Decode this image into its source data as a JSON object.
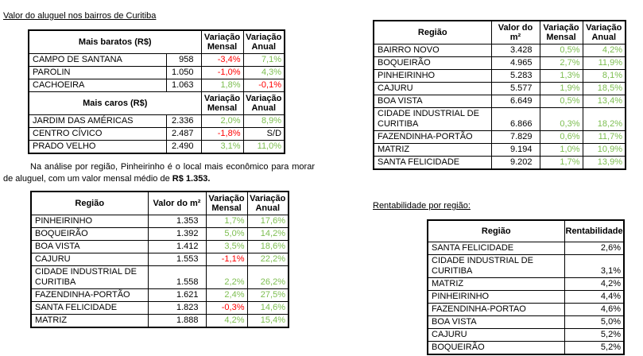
{
  "titles": {
    "left": "Valor do aluguel nos bairros de Curitiba",
    "right": "Rentabilidade por região:"
  },
  "paragraph": {
    "text": "Na análise por região, Pinheirinho é o local mais econômico para morar de aluguel, com um valor mensal médio de ",
    "bold": "R$ 1.353."
  },
  "colors": {
    "positive": "#7DBE50",
    "negative": "#FF0000",
    "neutral": "#000000",
    "border": "#000000",
    "background": "#FFFFFF"
  },
  "variation_headers": {
    "mensal": "Variação Mensal",
    "anual": "Variação Anual"
  },
  "cheap_expensive_table": {
    "sections": [
      {
        "label": "Mais baratos (R$)",
        "rows": [
          {
            "name": "CAMPO DE SANTANA",
            "value": "958",
            "mensal": "-3,4%",
            "mensal_tone": "neg",
            "anual": "7,1%",
            "anual_tone": "pos"
          },
          {
            "name": "PAROLIN",
            "value": "1.050",
            "mensal": "-1,0%",
            "mensal_tone": "neg",
            "anual": "4,3%",
            "anual_tone": "pos"
          },
          {
            "name": "CACHOEIRA",
            "value": "1.063",
            "mensal": "1,8%",
            "mensal_tone": "pos",
            "anual": "-0,1%",
            "anual_tone": "neg"
          }
        ]
      },
      {
        "label": "Mais caros (R$)",
        "rows": [
          {
            "name": "JARDIM DAS AMÉRICAS",
            "value": "2.336",
            "mensal": "2,0%",
            "mensal_tone": "pos",
            "anual": "8,9%",
            "anual_tone": "pos"
          },
          {
            "name": "CENTRO CÍVICO",
            "value": "2.487",
            "mensal": "-1,8%",
            "mensal_tone": "neg",
            "anual": "S/D",
            "anual_tone": "neu"
          },
          {
            "name": "PRADO VELHO",
            "value": "2.490",
            "mensal": "3,1%",
            "mensal_tone": "pos",
            "anual": "11,0%",
            "anual_tone": "pos"
          }
        ]
      }
    ]
  },
  "region_table_right": {
    "headers": {
      "region": "Região",
      "valor": "Valor do m²",
      "mensal": "Variação Mensal",
      "anual": "Variação Anual"
    },
    "rows": [
      {
        "region": "BAIRRO NOVO",
        "valor": "3.428",
        "mensal": "0,5%",
        "mensal_tone": "pos",
        "anual": "4,2%",
        "anual_tone": "pos"
      },
      {
        "region": "BOQUEIRÃO",
        "valor": "4.965",
        "mensal": "2,7%",
        "mensal_tone": "pos",
        "anual": "11,9%",
        "anual_tone": "pos"
      },
      {
        "region": "PINHEIRINHO",
        "valor": "5.283",
        "mensal": "1,3%",
        "mensal_tone": "pos",
        "anual": "8,1%",
        "anual_tone": "pos"
      },
      {
        "region": "CAJURU",
        "valor": "5.577",
        "mensal": "1,9%",
        "mensal_tone": "pos",
        "anual": "18,5%",
        "anual_tone": "pos"
      },
      {
        "region": "BOA VISTA",
        "valor": "6.649",
        "mensal": "0,5%",
        "mensal_tone": "pos",
        "anual": "13,4%",
        "anual_tone": "pos"
      },
      {
        "region": "CIDADE INDUSTRIAL DE CURITIBA",
        "valor": "6.866",
        "mensal": "0,3%",
        "mensal_tone": "pos",
        "anual": "18,2%",
        "anual_tone": "pos"
      },
      {
        "region": "FAZENDINHA-PORTÃO",
        "valor": "7.829",
        "mensal": "0,6%",
        "mensal_tone": "pos",
        "anual": "11,7%",
        "anual_tone": "pos"
      },
      {
        "region": "MATRIZ",
        "valor": "9.194",
        "mensal": "1,0%",
        "mensal_tone": "pos",
        "anual": "10,9%",
        "anual_tone": "pos"
      },
      {
        "region": "SANTA FELICIDADE",
        "valor": "9.202",
        "mensal": "1,7%",
        "mensal_tone": "pos",
        "anual": "13,9%",
        "anual_tone": "pos"
      }
    ]
  },
  "region_table_left": {
    "headers": {
      "region": "Região",
      "valor": "Valor do m²",
      "mensal": "Variação Mensal",
      "anual": "Variação Anual"
    },
    "rows": [
      {
        "region": "PINHEIRINHO",
        "valor": "1.353",
        "mensal": "1,7%",
        "mensal_tone": "pos",
        "anual": "17,6%",
        "anual_tone": "pos"
      },
      {
        "region": "BOQUEIRÃO",
        "valor": "1.392",
        "mensal": "5,0%",
        "mensal_tone": "pos",
        "anual": "14,2%",
        "anual_tone": "pos"
      },
      {
        "region": "BOA VISTA",
        "valor": "1.412",
        "mensal": "3,5%",
        "mensal_tone": "pos",
        "anual": "18,6%",
        "anual_tone": "pos"
      },
      {
        "region": "CAJURU",
        "valor": "1.553",
        "mensal": "-1,1%",
        "mensal_tone": "neg",
        "anual": "22,2%",
        "anual_tone": "pos"
      },
      {
        "region": "CIDADE INDUSTRIAL DE CURITIBA",
        "valor": "1.558",
        "mensal": "2,2%",
        "mensal_tone": "pos",
        "anual": "26,2%",
        "anual_tone": "pos"
      },
      {
        "region": "FAZENDINHA-PORTÃO",
        "valor": "1.621",
        "mensal": "2,4%",
        "mensal_tone": "pos",
        "anual": "27,5%",
        "anual_tone": "pos"
      },
      {
        "region": "SANTA FELICIDADE",
        "valor": "1.823",
        "mensal": "-0,3%",
        "mensal_tone": "neg",
        "anual": "14,6%",
        "anual_tone": "pos"
      },
      {
        "region": "MATRIZ",
        "valor": "1.888",
        "mensal": "4,2%",
        "mensal_tone": "pos",
        "anual": "15,4%",
        "anual_tone": "pos"
      }
    ]
  },
  "rentabilidade_table": {
    "headers": {
      "region": "Região",
      "value": "Rentabilidade"
    },
    "rows": [
      {
        "region": "SANTA FELICIDADE",
        "value": "2,6%"
      },
      {
        "region": "CIDADE INDUSTRIAL DE CURITIBA",
        "value": "3,1%"
      },
      {
        "region": "MATRIZ",
        "value": "4,2%"
      },
      {
        "region": "PINHEIRINHO",
        "value": "4,4%"
      },
      {
        "region": "FAZENDINHA-PORTAO",
        "value": "4,6%"
      },
      {
        "region": "BOA VISTA",
        "value": "5,0%"
      },
      {
        "region": "CAJURU",
        "value": "5,2%"
      },
      {
        "region": "BOQUEIRÃO",
        "value": "5,2%"
      }
    ]
  }
}
